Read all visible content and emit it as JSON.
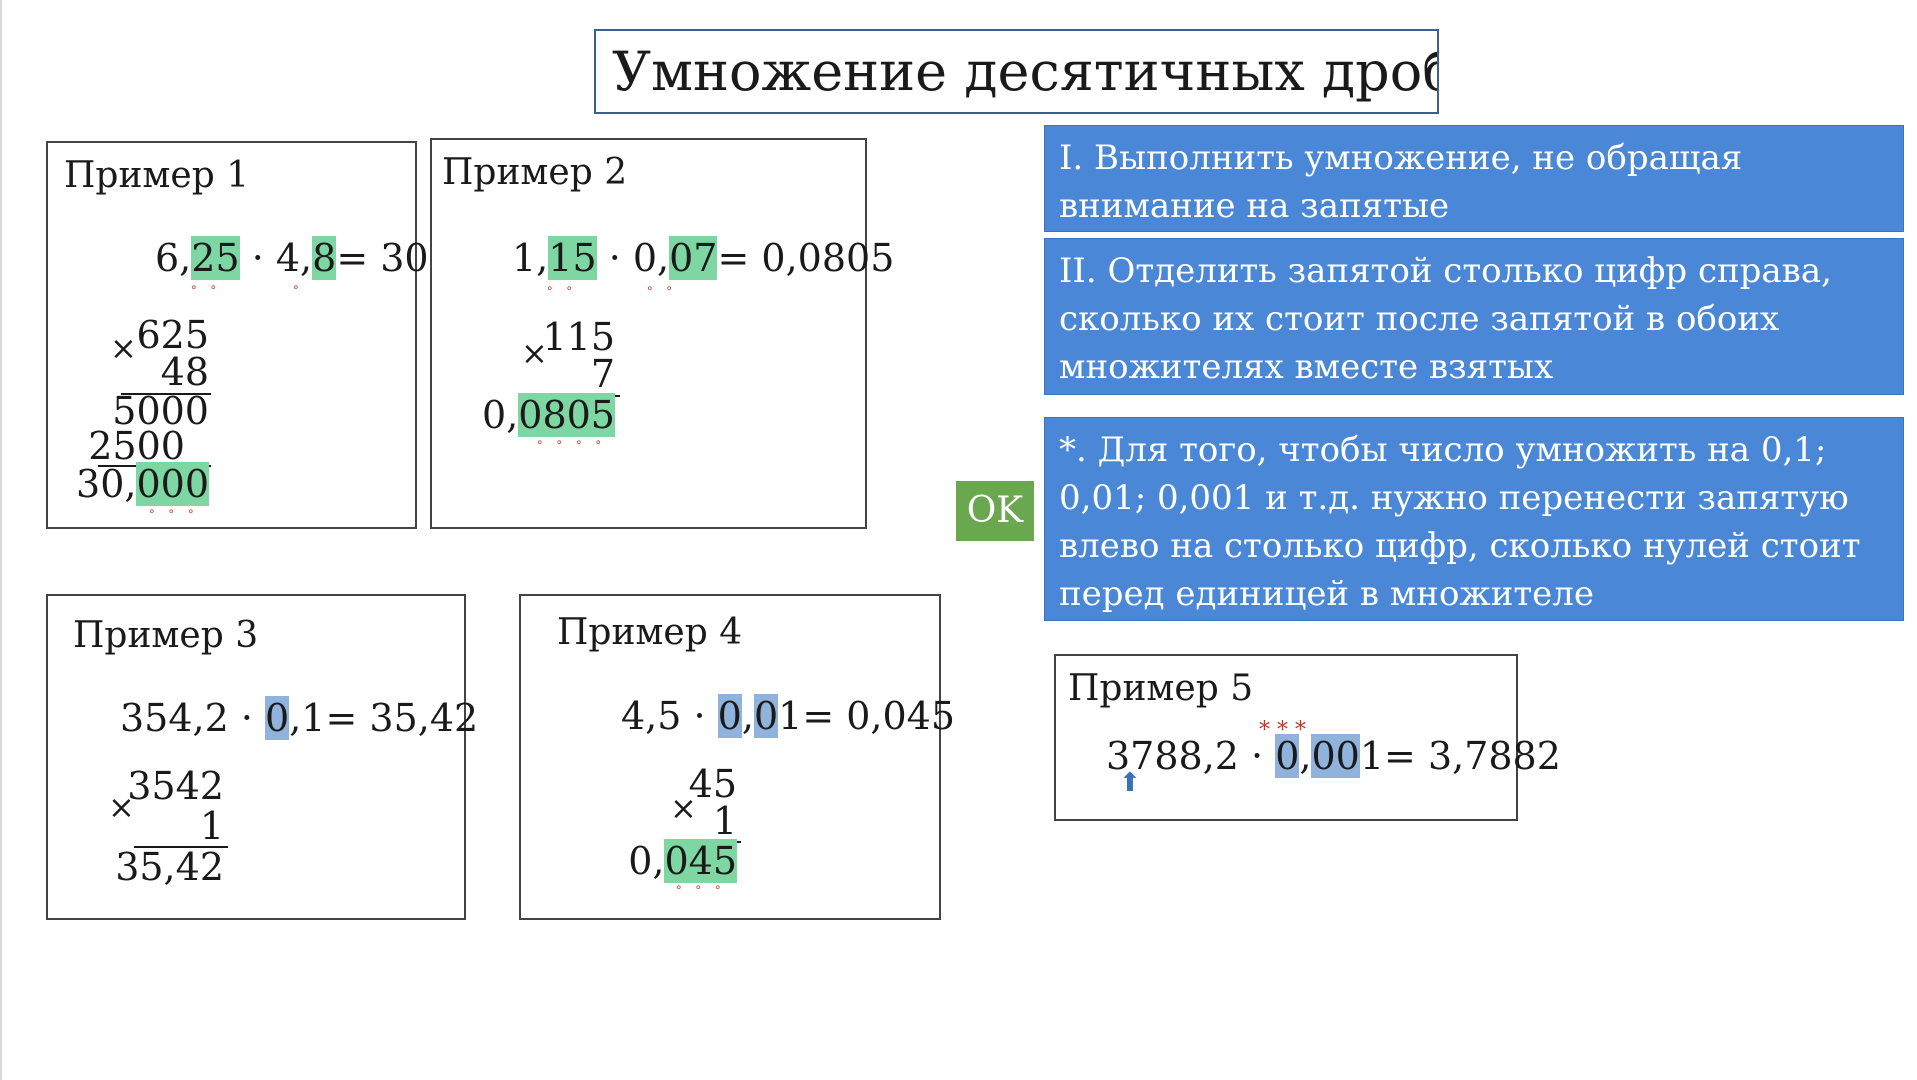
{
  "title": "Умножение десятичных дробей",
  "ok_label": "OK",
  "rules": [
    "I. Выполнить умножение, не обращая внимание на запятые",
    "II. Отделить запятой столько цифр справа, сколько их стоит после запятой в обоих множителях вместе взятых",
    "*. Для того, чтобы число умножить на 0,1; 0,01; 0,001 и т.д. нужно перенести запятую влево на столько цифр, сколько нулей стоит перед единицей в множителе"
  ],
  "examples": [
    {
      "title": "Пример 1",
      "expr": {
        "a1": "6,",
        "a2": "25",
        "op": " · 4,",
        "b": "8",
        "eq": "= 30"
      },
      "col": {
        "top": "625",
        "mult": "48",
        "p1": "5000",
        "p2": "2500",
        "res_a": "30,",
        "res_b": "000"
      },
      "marks_expr": [
        "∘∘",
        "∘"
      ],
      "marks_res": "∘∘∘"
    },
    {
      "title": "Пример 2",
      "expr": {
        "a1": "1,",
        "a2": "15",
        "op": " · 0,",
        "b": "07",
        "eq": "= 0,0805"
      },
      "col": {
        "top": "115",
        "mult": "7",
        "res_a": "0,",
        "res_b": "0805"
      },
      "marks_expr": [
        "∘∘",
        "∘∘"
      ],
      "marks_res": "∘∘∘∘"
    },
    {
      "title": "Пример 3",
      "expr": {
        "a": "354,2 · ",
        "h1": "0",
        "rest": ",1",
        "eq": "= 35,42"
      },
      "col": {
        "top": "3542",
        "mult": "1",
        "res": "35,42"
      }
    },
    {
      "title": "Пример 4",
      "expr": {
        "a": "4,5 · ",
        "h1": "0",
        "mid": ",",
        "h2": "0",
        "rest": "1",
        "eq": "= 0,045"
      },
      "col": {
        "top": "45",
        "mult": "1",
        "res_a": "0,",
        "res_b": "045"
      },
      "marks_res": "∘∘∘"
    },
    {
      "title": "Пример 5",
      "expr": {
        "a": "3788,2 · ",
        "h1": "0",
        "mid": ",",
        "h2": "00",
        "rest": "1",
        "eq": "= 3,7882"
      },
      "stars": "*  *  *"
    }
  ],
  "symbols": {
    "times": "×",
    "arrow": "⬆"
  },
  "colors": {
    "accent": "#4a87d6",
    "ok": "#6aa84f",
    "highlight_green": "#7ed6a2",
    "highlight_blue": "#8fb3dd",
    "marks": "#c0392b"
  }
}
